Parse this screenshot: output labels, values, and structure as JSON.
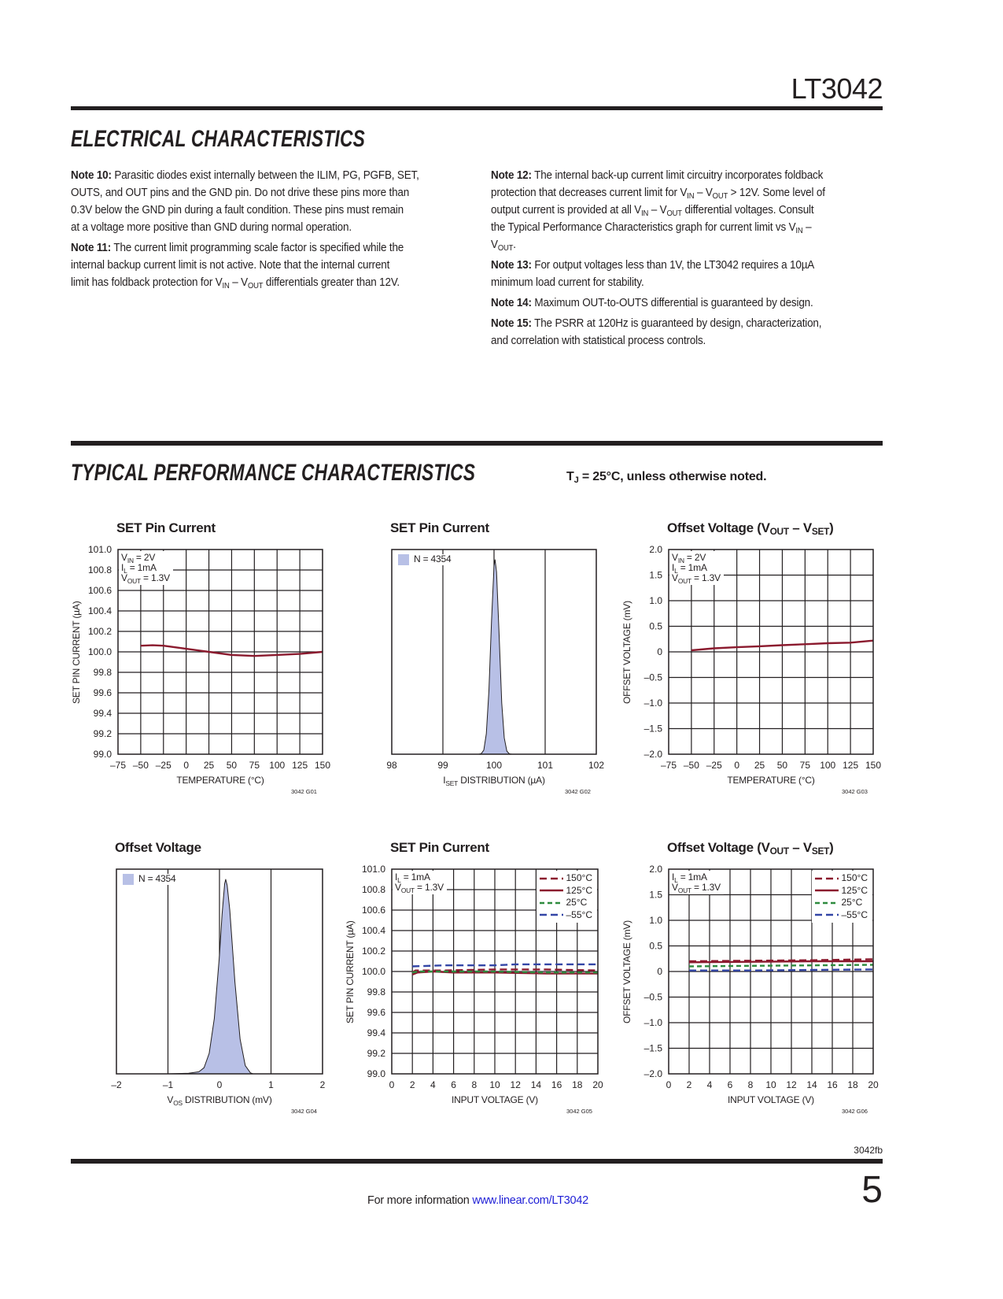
{
  "header": {
    "part_number": "LT3042"
  },
  "electrical": {
    "title": "ELECTRICAL CHARACTERISTICS",
    "col1": [
      {
        "label": "Note 10:",
        "lines": [
          " Parasitic diodes exist internally between the ILIM, PG, PGFB, SET,",
          "OUTS, and OUT pins and the GND pin. Do not drive these pins more than",
          "0.3V below the GND pin during a fault condition. These pins must remain",
          "at a voltage more positive than GND during normal operation."
        ]
      },
      {
        "label": "Note 11:",
        "lines": [
          " The current limit programming scale factor is specified while the",
          "internal backup current limit is not active. Note that the internal current",
          "limit has foldback protection for V_{IN} – V_{OUT} differentials greater than 12V."
        ]
      }
    ],
    "col2": [
      {
        "label": "Note 12:",
        "lines": [
          " The internal back-up current limit circuitry incorporates foldback",
          "protection that decreases current limit for V_{IN} – V_{OUT} > 12V. Some level of",
          "output current is provided at all V_{IN} – V_{OUT} differential voltages. Consult",
          "the Typical Performance Characteristics graph for current limit vs V_{IN} –",
          "V_{OUT}."
        ]
      },
      {
        "label": "Note 13:",
        "lines": [
          " For output voltages less than 1V, the LT3042 requires a 10µA",
          "minimum load current for stability."
        ]
      },
      {
        "label": "Note 14:",
        "lines": [
          " Maximum OUT-to-OUTS differential is guaranteed by design."
        ]
      },
      {
        "label": "Note 15:",
        "lines": [
          " The PSRR at 120Hz is guaranteed by design, characterization,",
          "and correlation with statistical process controls."
        ]
      }
    ]
  },
  "typical": {
    "title": "TYPICAL PERFORMANCE CHARACTERISTICS",
    "condition": "T_{J} = 25°C, unless otherwise noted."
  },
  "colors": {
    "dark_red": "#8b1a2e",
    "green": "#2e8b3e",
    "blue": "#3346a6",
    "histogram_fill": "#b8c0e6"
  },
  "chart_data": [
    {
      "type": "line",
      "title": "SET Pin Current",
      "xlabel": "TEMPERATURE (°C)",
      "ylabel": "SET PIN CURRENT (µA)",
      "code": "3042 G01",
      "xlim": [
        -75,
        150
      ],
      "ylim": [
        99.0,
        101.0
      ],
      "xticks": [
        "–75",
        "–50",
        "–25",
        "0",
        "25",
        "50",
        "75",
        "100",
        "125",
        "150"
      ],
      "yticks": [
        "99.0",
        "99.2",
        "99.4",
        "99.6",
        "99.8",
        "100.0",
        "100.2",
        "100.4",
        "100.6",
        "100.8",
        "101.0"
      ],
      "grid": true,
      "annotation": [
        "V_{IN} = 2V",
        "I_{L} = 1mA",
        "V_{OUT} = 1.3V"
      ],
      "series": [
        {
          "color": "dark_red",
          "dash": "solid",
          "x": [
            -50,
            -37,
            -25,
            0,
            25,
            50,
            75,
            100,
            125,
            150
          ],
          "y": [
            100.06,
            100.065,
            100.06,
            100.03,
            100.0,
            99.97,
            99.96,
            99.97,
            99.98,
            100.0
          ]
        }
      ]
    },
    {
      "type": "histogram",
      "title": "SET Pin Current",
      "xlabel": "I_{SET} DISTRIBUTION (µA)",
      "ylabel": "",
      "code": "3042 G02",
      "xlim": [
        98,
        102
      ],
      "ylim": [
        0,
        1
      ],
      "xticks": [
        "98",
        "99",
        "100",
        "101",
        "102"
      ],
      "yticks": [],
      "grid": true,
      "legend_box": "N = 4354",
      "series": [
        {
          "color": "histogram_fill",
          "x": [
            99.7,
            99.75,
            99.8,
            99.85,
            99.9,
            99.95,
            100.0,
            100.02,
            100.05,
            100.1,
            100.15,
            100.2,
            100.25,
            100.3,
            100.35
          ],
          "y": [
            0,
            0.003,
            0.02,
            0.1,
            0.31,
            0.65,
            0.92,
            0.95,
            0.89,
            0.58,
            0.25,
            0.08,
            0.015,
            0.002,
            0
          ]
        }
      ]
    },
    {
      "type": "line",
      "title": "Offset Voltage (V_{OUT} – V_{SET})",
      "xlabel": "TEMPERATURE (°C)",
      "ylabel": "OFFSET VOLTAGE (mV)",
      "code": "3042 G03",
      "xlim": [
        -75,
        150
      ],
      "ylim": [
        -2.0,
        2.0
      ],
      "xticks": [
        "–75",
        "–50",
        "–25",
        "0",
        "25",
        "50",
        "75",
        "100",
        "125",
        "150"
      ],
      "yticks": [
        "–2.0",
        "–1.5",
        "–1.0",
        "–0.5",
        "0",
        "0.5",
        "1.0",
        "1.5",
        "2.0"
      ],
      "grid": true,
      "annotation": [
        "V_{IN} = 2V",
        "I_{L} = 1mA",
        "V_{OUT} = 1.3V"
      ],
      "series": [
        {
          "color": "dark_red",
          "dash": "solid",
          "x": [
            -50,
            -25,
            0,
            25,
            50,
            75,
            100,
            125,
            150
          ],
          "y": [
            0.03,
            0.07,
            0.09,
            0.11,
            0.13,
            0.15,
            0.17,
            0.18,
            0.22
          ]
        }
      ]
    },
    {
      "type": "histogram",
      "title": "Offset Voltage",
      "xlabel": "V_{OS} DISTRIBUTION (mV)",
      "ylabel": "",
      "code": "3042 G04",
      "xlim": [
        -2,
        2
      ],
      "ylim": [
        0,
        1
      ],
      "xticks": [
        "–2",
        "–1",
        "0",
        "1",
        "2"
      ],
      "yticks": [],
      "grid": true,
      "legend_box": "N = 4354",
      "series": [
        {
          "color": "histogram_fill",
          "x": [
            -1.0,
            -0.6,
            -0.4,
            -0.3,
            -0.2,
            -0.1,
            0,
            0.05,
            0.1,
            0.12,
            0.15,
            0.2,
            0.3,
            0.4,
            0.5,
            0.6,
            0.65
          ],
          "y": [
            0,
            0.003,
            0.01,
            0.03,
            0.1,
            0.27,
            0.58,
            0.78,
            0.93,
            0.95,
            0.92,
            0.8,
            0.45,
            0.17,
            0.04,
            0.005,
            0
          ]
        }
      ]
    },
    {
      "type": "line",
      "title": "SET Pin Current",
      "xlabel": "INPUT VOLTAGE (V)",
      "ylabel": "SET PIN CURRENT (µA)",
      "code": "3042 G05",
      "xlim": [
        0,
        20
      ],
      "ylim": [
        99.0,
        101.0
      ],
      "xticks": [
        "0",
        "2",
        "4",
        "6",
        "8",
        "10",
        "12",
        "14",
        "16",
        "18",
        "20"
      ],
      "yticks": [
        "99.0",
        "99.2",
        "99.4",
        "99.6",
        "99.8",
        "100.0",
        "100.2",
        "100.4",
        "100.6",
        "100.8",
        "101.0"
      ],
      "grid": true,
      "annotation": [
        "I_{L} = 1mA",
        "V_{OUT} = 1.3V"
      ],
      "series": [
        {
          "name": "150°C",
          "color": "dark_red",
          "dash": "long",
          "x": [
            2,
            2.3,
            5,
            10,
            15,
            20
          ],
          "y": [
            99.99,
            100.01,
            100.01,
            100.02,
            100.02,
            100.01
          ]
        },
        {
          "name": "125°C",
          "color": "dark_red",
          "dash": "solid",
          "x": [
            2,
            2.5,
            4,
            6,
            10,
            15,
            20
          ],
          "y": [
            99.97,
            99.99,
            100.0,
            99.99,
            99.99,
            99.98,
            99.98
          ]
        },
        {
          "name": "25°C",
          "color": "green",
          "dash": "short",
          "x": [
            2,
            2.5,
            5,
            10,
            15,
            20
          ],
          "y": [
            99.99,
            100.0,
            100.0,
            100.0,
            99.99,
            99.99
          ]
        },
        {
          "name": "–55°C",
          "color": "blue",
          "dash": "long",
          "x": [
            2,
            5,
            10,
            12,
            15,
            20
          ],
          "y": [
            100.05,
            100.06,
            100.06,
            100.07,
            100.07,
            100.07
          ]
        }
      ]
    },
    {
      "type": "line",
      "title": "Offset Voltage (V_{OUT} – V_{SET})",
      "xlabel": "INPUT VOLTAGE (V)",
      "ylabel": "OFFSET VOLTAGE (mV)",
      "code": "3042 G06",
      "xlim": [
        0,
        20
      ],
      "ylim": [
        -2.0,
        2.0
      ],
      "xticks": [
        "0",
        "2",
        "4",
        "6",
        "8",
        "10",
        "12",
        "14",
        "16",
        "18",
        "20"
      ],
      "yticks": [
        "–2.0",
        "–1.5",
        "–1.0",
        "–0.5",
        "0",
        "0.5",
        "1.0",
        "1.5",
        "2.0"
      ],
      "grid": true,
      "annotation": [
        "I_{L} = 1mA",
        "V_{OUT} = 1.3V"
      ],
      "series": [
        {
          "name": "150°C",
          "color": "dark_red",
          "dash": "long",
          "x": [
            2,
            8,
            14,
            20
          ],
          "y": [
            0.2,
            0.21,
            0.22,
            0.24
          ]
        },
        {
          "name": "125°C",
          "color": "dark_red",
          "dash": "solid",
          "x": [
            2,
            8,
            14,
            20
          ],
          "y": [
            0.18,
            0.19,
            0.2,
            0.2
          ]
        },
        {
          "name": "25°C",
          "color": "green",
          "dash": "short",
          "x": [
            2,
            8,
            14,
            20
          ],
          "y": [
            0.1,
            0.11,
            0.12,
            0.13
          ]
        },
        {
          "name": "–55°C",
          "color": "blue",
          "dash": "long",
          "x": [
            2,
            8,
            14,
            20
          ],
          "y": [
            0.02,
            0.02,
            0.03,
            0.04
          ]
        }
      ]
    }
  ],
  "footer": {
    "doc_rev": "3042fb",
    "page_number": "5",
    "more_info": "For more information ",
    "link": "www.linear.com/LT3042"
  }
}
